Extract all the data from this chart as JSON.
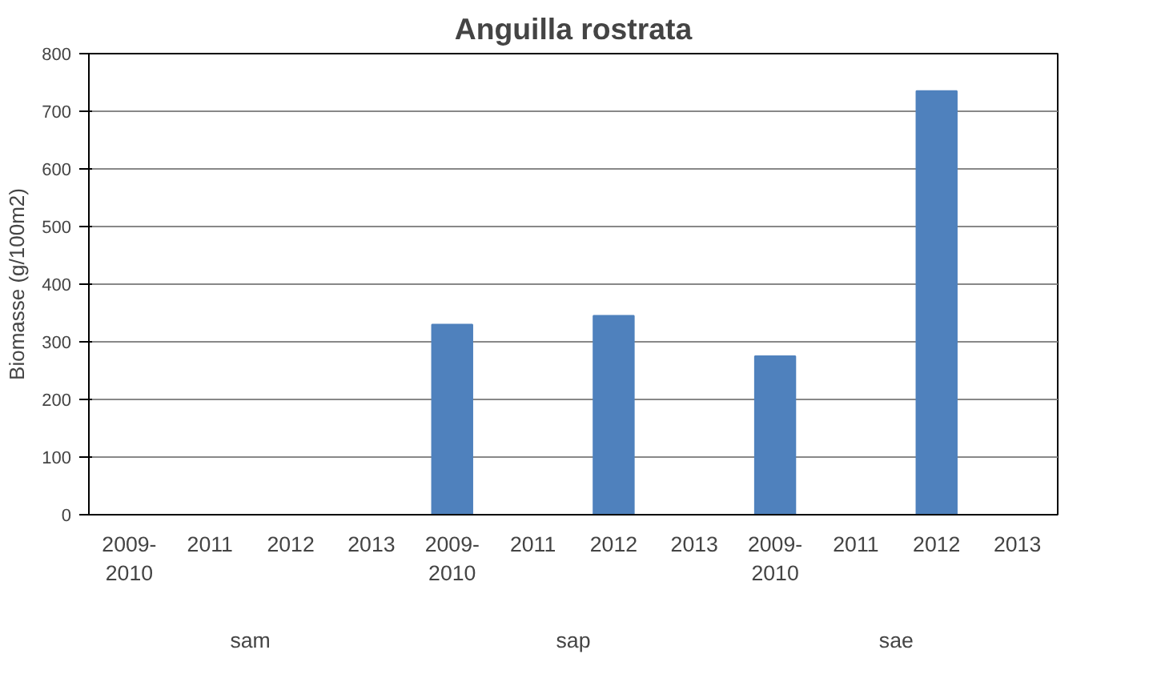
{
  "chart_data": {
    "type": "bar",
    "title": "Anguilla rostrata",
    "ylabel": "Biomasse (g/100m2)",
    "categories": [
      "2009-2010",
      "2011",
      "2012",
      "2013",
      "2009-2010",
      "2011",
      "2012",
      "2013",
      "2009-2010",
      "2011",
      "2012",
      "2013"
    ],
    "values": [
      0,
      0,
      0,
      0,
      330,
      0,
      345,
      0,
      275,
      0,
      735,
      0
    ],
    "color": "#4f81bd",
    "ylim": [
      0,
      800
    ],
    "yticks": [
      0,
      100,
      200,
      300,
      400,
      500,
      600,
      700,
      800
    ],
    "grid": "y",
    "annotations": [
      "sam",
      "sap",
      "sae"
    ]
  }
}
